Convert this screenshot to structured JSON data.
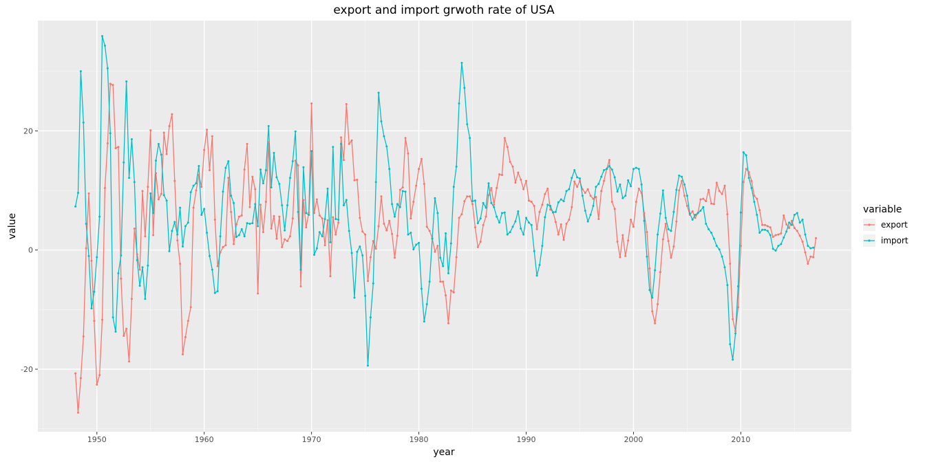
{
  "chart_data": {
    "type": "line",
    "title": "export and import grwoth rate of USA",
    "xlabel": "year",
    "ylabel": "value",
    "xlim": [
      1944.5,
      2020.3
    ],
    "ylim": [
      -30.5,
      38.5
    ],
    "x_ticks": [
      1950,
      1960,
      1970,
      1980,
      1990,
      2000,
      2010
    ],
    "y_ticks": [
      -20,
      0,
      20
    ],
    "grid": true,
    "legend": {
      "title": "variable",
      "position": "right"
    },
    "x_start": 1948.0,
    "x_step": 0.25,
    "series": [
      {
        "name": "export",
        "color": "#F8766D",
        "values": [
          -20.7,
          -27.3,
          -21.5,
          -14.5,
          0.3,
          9.5,
          -1.8,
          -11.9,
          -22.6,
          -21.0,
          -11.7,
          10.4,
          17.9,
          27.9,
          27.7,
          17.1,
          17.3,
          -4.8,
          -14.4,
          -13.2,
          -18.7,
          -8.2,
          3.6,
          -0.7,
          -3.3,
          9.9,
          2.3,
          10.6,
          20.1,
          2.5,
          12.9,
          8.5,
          9.4,
          19.7,
          16.1,
          20.8,
          22.8,
          11.6,
          1.6,
          -2.3,
          -17.5,
          -14.6,
          -11.9,
          -9.6,
          7.1,
          10.0,
          12.6,
          10.6,
          16.8,
          20.2,
          13.4,
          19.1,
          5.1,
          -2.7,
          -0.4,
          0.5,
          0.8,
          12.1,
          6.4,
          1.0,
          4.3,
          5.6,
          5.8,
          13.5,
          17.8,
          7.2,
          12.3,
          10.2,
          -7.3,
          7.6,
          3.0,
          8.1,
          18.1,
          3.6,
          5.7,
          1.9,
          5.6,
          0.5,
          1.8,
          1.5,
          2.3,
          5.3,
          15.0,
          14.2,
          -6.1,
          8.4,
          3.8,
          6.3,
          24.6,
          6.2,
          8.5,
          5.8,
          5.3,
          0.8,
          5.0,
          -4.4,
          5.5,
          2.6,
          4.6,
          18.9,
          15.1,
          24.5,
          17.8,
          18.4,
          11.7,
          11.8,
          5.4,
          3.1,
          2.6,
          -5.2,
          -1.2,
          1.5,
          0.2,
          4.0,
          9.0,
          4.4,
          3.3,
          4.9,
          2.7,
          -1.3,
          2.4,
          10.1,
          10.5,
          18.8,
          16.2,
          5.3,
          8.1,
          10.8,
          13.6,
          15.3,
          11.1,
          3.9,
          3.2,
          2.0,
          -0.3,
          0.7,
          -5.3,
          -5.3,
          -7.6,
          -12.3,
          -6.8,
          -7.1,
          -1.2,
          5.4,
          6.0,
          8.2,
          9.0,
          9.0,
          7.7,
          3.8,
          0.5,
          1.4,
          4.2,
          5.6,
          9.2,
          10.4,
          7.6,
          10.4,
          12.7,
          12.6,
          18.8,
          17.3,
          14.8,
          14.0,
          11.3,
          13.0,
          11.8,
          10.2,
          11.6,
          8.3,
          8.1,
          7.4,
          3.5,
          6.4,
          7.6,
          9.4,
          10.3,
          6.8,
          6.4,
          4.7,
          2.6,
          4.3,
          1.7,
          4.4,
          5.1,
          7.2,
          11.5,
          10.6,
          11.6,
          10.2,
          9.6,
          10.2,
          9.1,
          8.6,
          8.9,
          5.2,
          9.9,
          11.6,
          13.6,
          15.1,
          8.1,
          6.9,
          1.4,
          -1.2,
          2.5,
          -1.0,
          1.6,
          5.1,
          3.9,
          8.1,
          10.3,
          9.6,
          6.2,
          3.0,
          -3.1,
          -10.3,
          -12.3,
          -9.1,
          -3.7,
          1.8,
          4.4,
          1.5,
          -1.3,
          0.6,
          4.8,
          10.0,
          11.6,
          9.1,
          7.4,
          5.9,
          6.5,
          5.4,
          6.2,
          8.5,
          8.6,
          8.2,
          10.1,
          7.8,
          7.7,
          11.3,
          9.9,
          9.4,
          10.8,
          6.0,
          -2.3,
          -11.6,
          -13.6,
          -9.6,
          0.7,
          11.4,
          13.6,
          13.1,
          11.6,
          9.1,
          8.6,
          6.7,
          4.2,
          4.2,
          4.0,
          3.8,
          2.2,
          2.5,
          2.6,
          2.8,
          5.8,
          4.3,
          3.7,
          4.9,
          3.7,
          3.2,
          2.4,
          1.4,
          -0.4,
          -2.3,
          -1.1,
          -1.2,
          2.0
        ]
      },
      {
        "name": "import",
        "color": "#00BFC4",
        "values": [
          7.3,
          9.6,
          30.0,
          21.4,
          4.4,
          -1.0,
          -9.8,
          -7.0,
          -1.2,
          5.6,
          35.9,
          34.3,
          30.5,
          19.6,
          -11.3,
          -13.7,
          -3.9,
          -0.9,
          14.7,
          28.3,
          12.1,
          18.6,
          11.4,
          -1.7,
          -6.0,
          -2.9,
          -8.2,
          -2.6,
          9.5,
          6.2,
          15.0,
          17.8,
          16.0,
          9.2,
          8.3,
          -0.2,
          3.2,
          4.7,
          2.6,
          7.1,
          0.6,
          4.0,
          4.6,
          9.7,
          10.8,
          11.2,
          14.1,
          5.9,
          6.9,
          2.9,
          -1.0,
          -3.3,
          -7.2,
          -6.9,
          2.3,
          9.8,
          13.8,
          14.9,
          9.1,
          7.9,
          2.2,
          2.5,
          3.5,
          2.3,
          4.5,
          4.4,
          4.5,
          7.7,
          4.0,
          13.5,
          11.2,
          13.4,
          20.8,
          10.5,
          16.3,
          12.2,
          11.1,
          7.5,
          3.3,
          7.5,
          12.1,
          14.9,
          19.9,
          6.4,
          -3.3,
          13.9,
          6.2,
          5.9,
          16.6,
          -0.8,
          0.3,
          3.0,
          2.3,
          5.2,
          10.3,
          1.3,
          17.3,
          5.2,
          5.1,
          17.8,
          7.5,
          8.4,
          3.2,
          -0.5,
          -8.0,
          -0.3,
          0.6,
          -0.9,
          -7.7,
          -19.4,
          -11.3,
          -5.6,
          11.4,
          26.4,
          21.6,
          19.1,
          17.4,
          13.6,
          7.7,
          5.6,
          7.7,
          7.2,
          9.9,
          9.8,
          2.6,
          2.9,
          0.1,
          0.9,
          1.2,
          -6.5,
          -12.0,
          -9.1,
          -5.3,
          1.9,
          8.7,
          6.2,
          -1.3,
          -2.7,
          2.8,
          -3.9,
          1.1,
          10.6,
          14.0,
          24.6,
          31.4,
          27.2,
          21.1,
          18.8,
          8.2,
          8.3,
          4.5,
          5.3,
          7.9,
          7.1,
          11.2,
          7.9,
          7.2,
          5.6,
          4.6,
          6.2,
          6.3,
          2.6,
          3.0,
          3.9,
          4.8,
          6.5,
          3.6,
          2.6,
          5.4,
          4.6,
          4.2,
          -0.2,
          -4.3,
          -2.5,
          0.7,
          5.5,
          7.6,
          7.4,
          6.3,
          6.4,
          8.0,
          8.5,
          8.2,
          9.9,
          10.2,
          12.1,
          13.4,
          12.2,
          12.0,
          9.1,
          6.6,
          4.8,
          5.9,
          7.4,
          10.6,
          11.1,
          12.3,
          13.4,
          13.6,
          14.1,
          13.5,
          12.2,
          9.8,
          11.0,
          8.7,
          9.1,
          11.7,
          10.7,
          13.6,
          13.8,
          13.6,
          11.0,
          4.9,
          -1.1,
          -6.7,
          -8.0,
          -3.4,
          2.6,
          6.1,
          10.0,
          5.4,
          3.5,
          3.2,
          6.4,
          10.1,
          12.5,
          12.3,
          11.0,
          9.1,
          6.1,
          5.1,
          5.9,
          6.2,
          6.6,
          7.2,
          4.4,
          3.5,
          2.9,
          1.9,
          0.7,
          0.1,
          -1.1,
          -2.9,
          -5.9,
          -15.8,
          -18.4,
          -14.0,
          -6.1,
          6.3,
          16.4,
          15.9,
          12.1,
          10.4,
          8.1,
          5.9,
          2.9,
          3.4,
          3.4,
          3.2,
          2.5,
          0.2,
          -0.1,
          0.7,
          1.0,
          2.1,
          3.1,
          4.6,
          4.2,
          5.9,
          6.2,
          4.6,
          5.1,
          2.6,
          0.7,
          0.3,
          0.4
        ]
      }
    ]
  }
}
